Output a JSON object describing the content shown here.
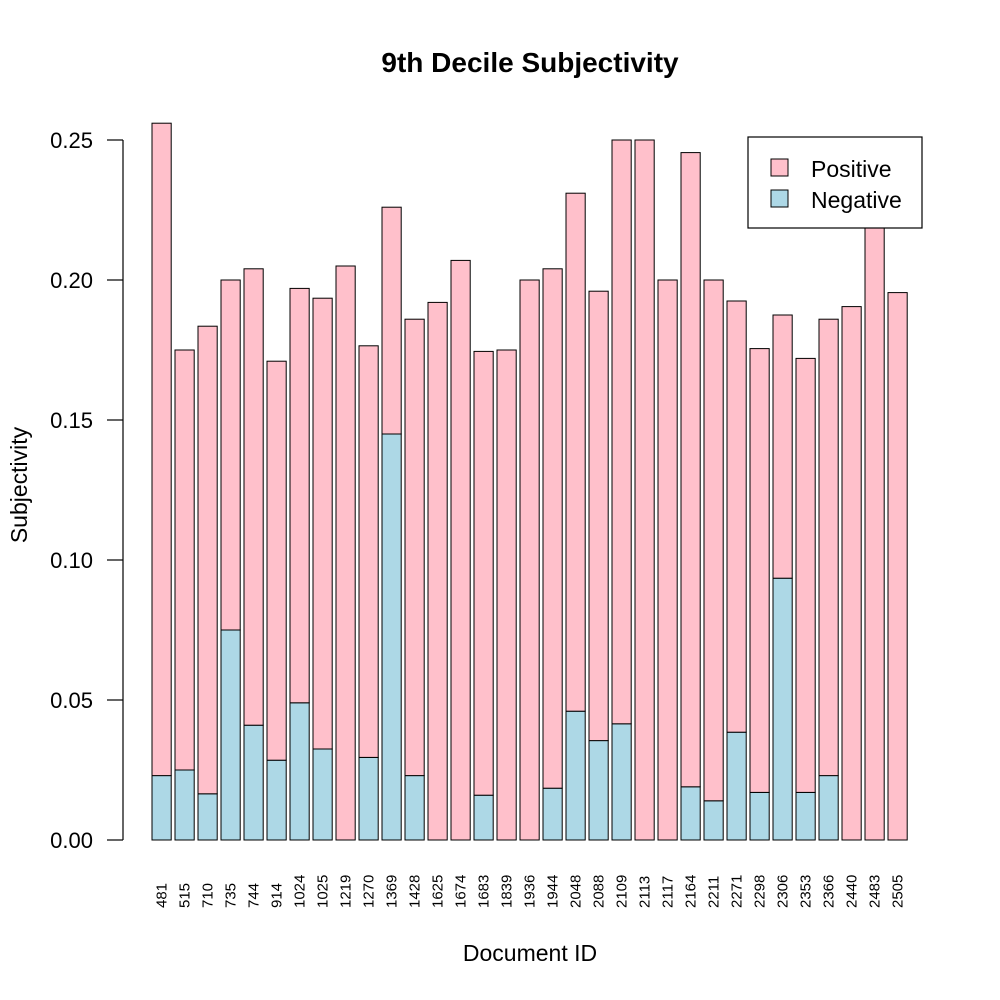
{
  "chart_data": {
    "type": "bar",
    "stacked": true,
    "title": "9th Decile Subjectivity",
    "xlabel": "Document ID",
    "ylabel": "Subjectivity",
    "ylim": [
      0,
      0.25
    ],
    "yticks": [
      "0.00",
      "0.05",
      "0.10",
      "0.15",
      "0.20",
      "0.25"
    ],
    "grid": false,
    "legend_position": "top-right",
    "categories": [
      "481",
      "515",
      "710",
      "735",
      "744",
      "914",
      "1024",
      "1025",
      "1219",
      "1270",
      "1369",
      "1428",
      "1625",
      "1674",
      "1683",
      "1839",
      "1936",
      "1944",
      "2048",
      "2088",
      "2109",
      "2113",
      "2117",
      "2164",
      "2211",
      "2271",
      "2298",
      "2306",
      "2353",
      "2366",
      "2440",
      "2483",
      "2505"
    ],
    "series": [
      {
        "name": "Negative",
        "color": "#add8e6",
        "values": [
          0.023,
          0.025,
          0.0165,
          0.075,
          0.041,
          0.0285,
          0.049,
          0.0325,
          0.0,
          0.0295,
          0.145,
          0.023,
          0.0,
          0.0,
          0.016,
          0.0,
          0.0,
          0.0185,
          0.046,
          0.0355,
          0.0415,
          0.0,
          0.0,
          0.019,
          0.014,
          0.0385,
          0.017,
          0.0935,
          0.017,
          0.023,
          0.0,
          0.0,
          0.0
        ]
      },
      {
        "name": "Positive",
        "color": "#ffc0cb",
        "values": [
          0.233,
          0.15,
          0.167,
          0.125,
          0.163,
          0.1425,
          0.148,
          0.161,
          0.205,
          0.147,
          0.081,
          0.163,
          0.192,
          0.207,
          0.1585,
          0.175,
          0.2,
          0.1855,
          0.185,
          0.1605,
          0.2085,
          0.25,
          0.2,
          0.2265,
          0.186,
          0.154,
          0.1585,
          0.094,
          0.155,
          0.163,
          0.1905,
          0.222,
          0.1955
        ]
      }
    ],
    "legend": [
      "Positive",
      "Negative"
    ]
  }
}
